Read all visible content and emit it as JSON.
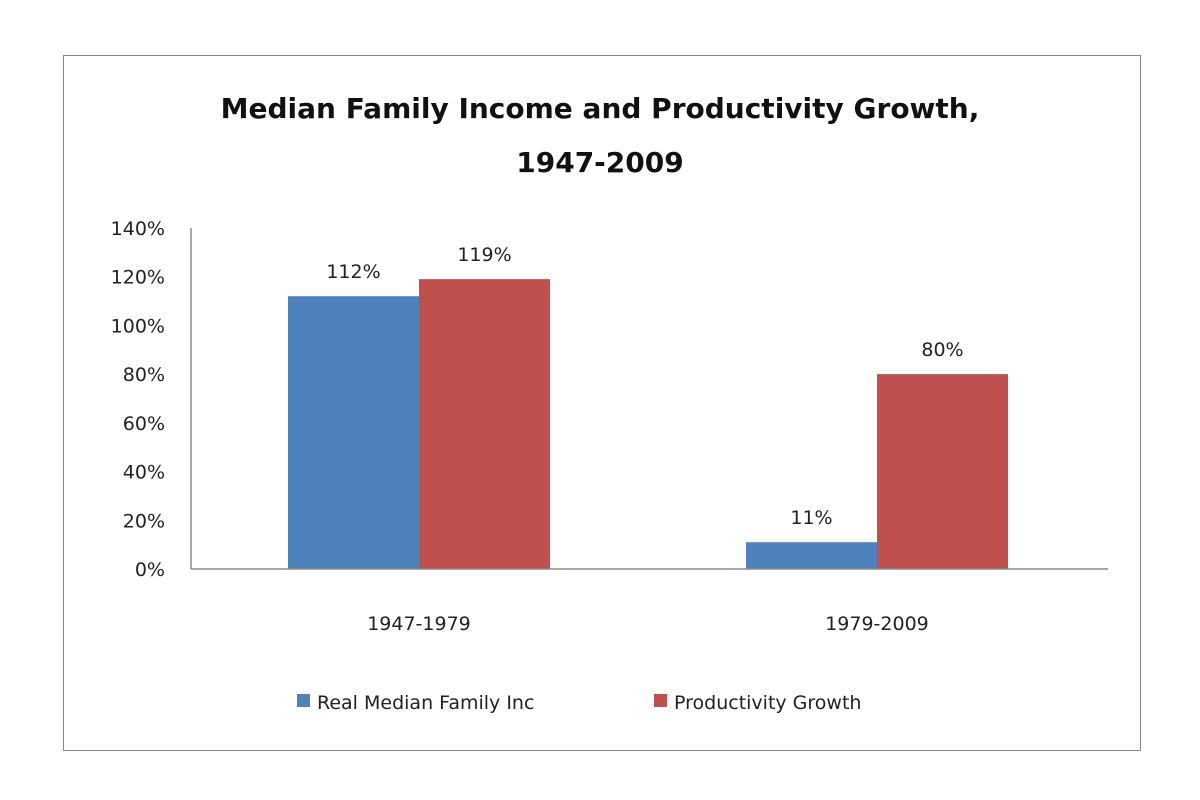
{
  "chart_data": {
    "type": "bar",
    "title": [
      "Median Family Income and Productivity Growth,",
      "1947-2009"
    ],
    "categories": [
      "1947-1979",
      "1979-2009"
    ],
    "series": [
      {
        "name": "Real Median  Family Inc",
        "values": [
          112,
          11
        ],
        "labels": [
          "112%",
          "11%"
        ],
        "color": "#4f81bd"
      },
      {
        "name": "Productivity Growth",
        "values": [
          119,
          80
        ],
        "labels": [
          "119%",
          "80%"
        ],
        "color": "#c0504d"
      }
    ],
    "ylim": [
      0,
      140
    ],
    "yticks": [
      0,
      20,
      40,
      60,
      80,
      100,
      120,
      140
    ],
    "ytick_labels": [
      "0%",
      "20%",
      "40%",
      "60%",
      "80%",
      "100%",
      "120%",
      "140%"
    ],
    "xlabel": "",
    "ylabel": "",
    "grid": false,
    "legend_position": "bottom"
  }
}
